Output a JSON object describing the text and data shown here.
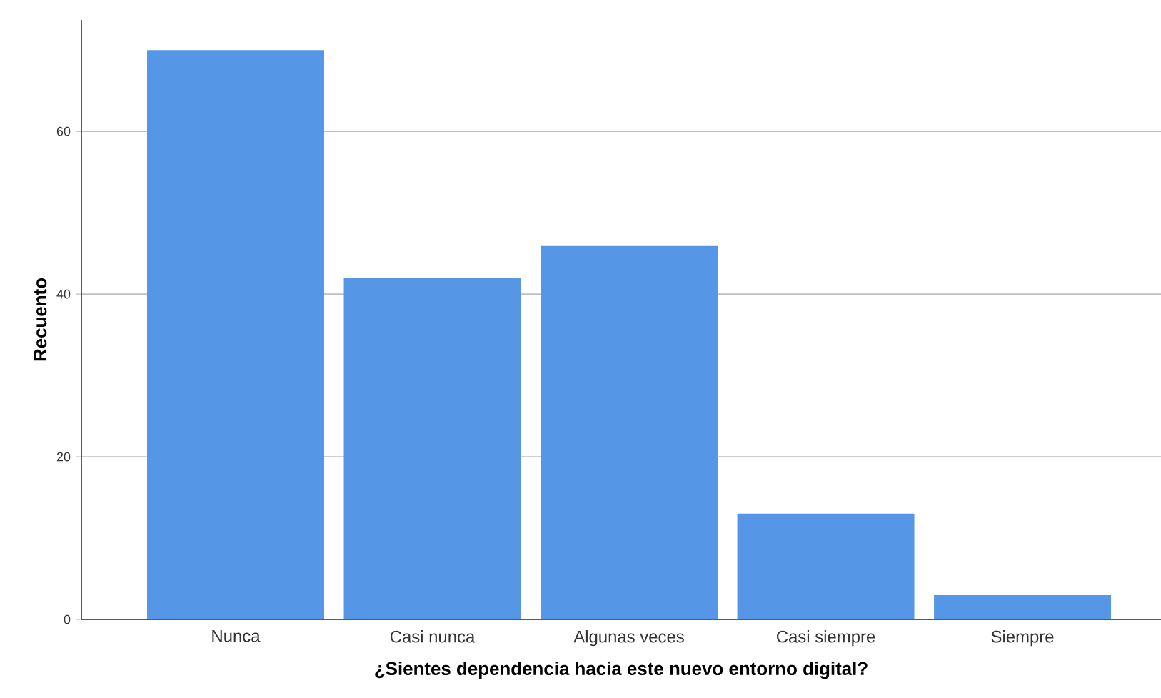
{
  "chart_data": {
    "type": "bar",
    "xlabel": "¿Sientes dependencia hacia este nuevo entorno digital?",
    "ylabel": "Recuento",
    "categories": [
      "Nunca",
      "Casi nunca",
      "Algunas veces",
      "Casi siempre",
      "Siempre"
    ],
    "values": [
      70,
      42,
      46,
      13,
      3
    ],
    "color": "#5596e6",
    "ylim": [
      0,
      73.7
    ],
    "yticks": [
      0,
      20,
      40,
      60
    ],
    "grid": "y"
  }
}
